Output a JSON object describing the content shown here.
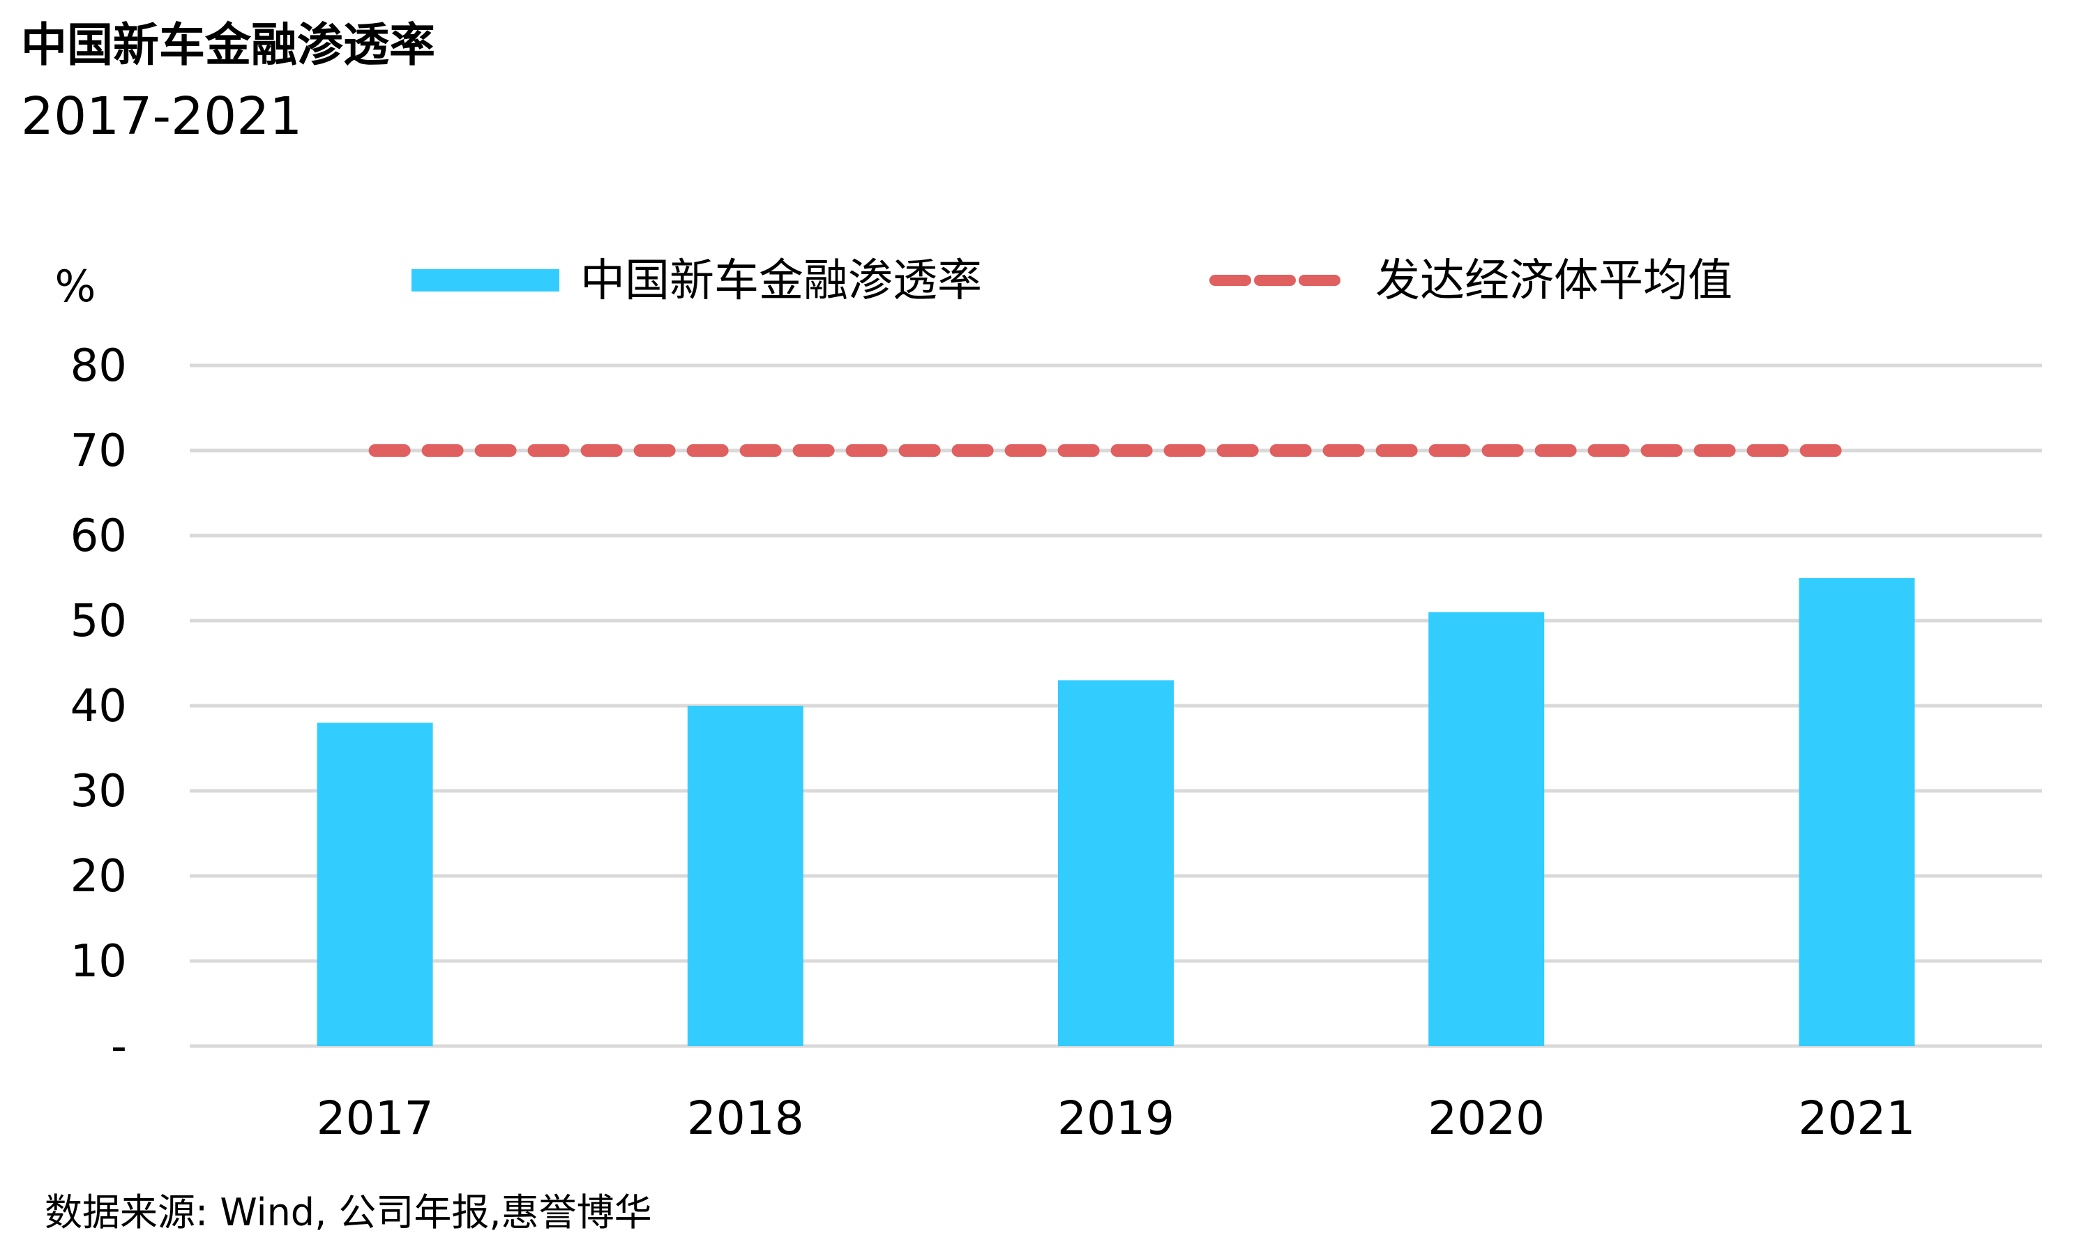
{
  "chart_data": {
    "type": "bar",
    "title": "中国新车金融渗透率",
    "subtitle": "2017-2021",
    "ylabel": "%",
    "ylim": [
      0,
      80
    ],
    "yticks": [
      0,
      10,
      20,
      30,
      40,
      50,
      60,
      70,
      80
    ],
    "ytick_labels": [
      "-",
      "10",
      "20",
      "30",
      "40",
      "50",
      "60",
      "70",
      "80"
    ],
    "categories": [
      "2017",
      "2018",
      "2019",
      "2020",
      "2021"
    ],
    "series": [
      {
        "name": "中国新车金融渗透率",
        "type": "bar",
        "color": "#33CCFF",
        "values": [
          38,
          40,
          43,
          51,
          55
        ]
      },
      {
        "name": "发达经济体平均值",
        "type": "line",
        "style": "dashed",
        "color": "#E06060",
        "values": [
          70,
          70,
          70,
          70,
          70
        ]
      }
    ],
    "grid": true,
    "legend": "top"
  },
  "source": "数据来源: Wind, 公司年报,惠誉博华"
}
